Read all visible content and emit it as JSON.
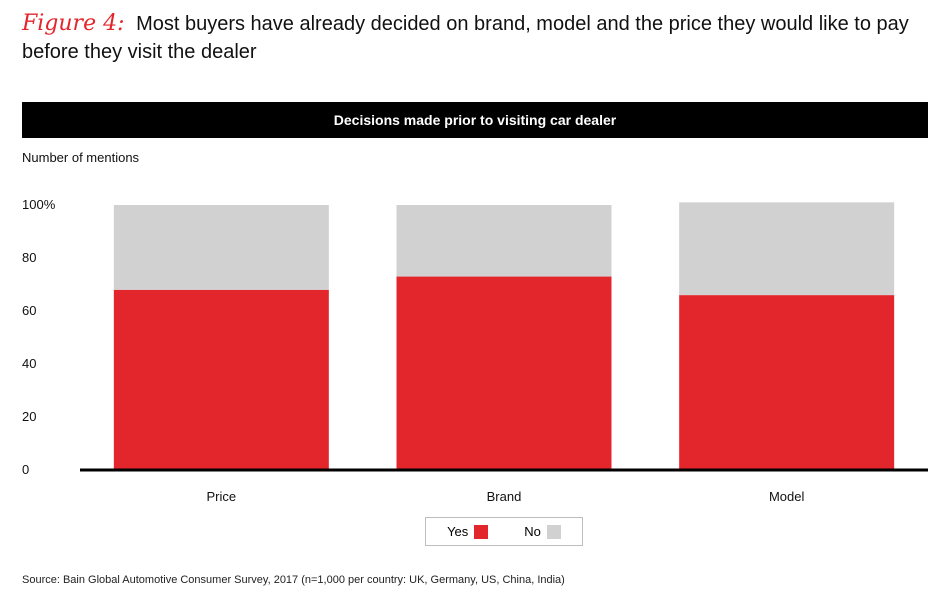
{
  "figure": {
    "label": "Figure 4:",
    "title": "Most buyers have already decided on brand, model and the price they would like to pay before they visit the dealer"
  },
  "banner": "Decisions made prior to visiting car dealer",
  "colors": {
    "yes": "#e3262b",
    "no": "#d1d1d2",
    "axis": "#000000",
    "banner": "#000000"
  },
  "legend": [
    {
      "label": "Yes",
      "color": "#e3262b"
    },
    {
      "label": "No",
      "color": "#d1d1d2"
    }
  ],
  "source": "Source: Bain Global Automotive Consumer Survey, 2017 (n=1,000 per country: UK, Germany, US, China, India)",
  "chart_data": {
    "type": "bar",
    "stacked": true,
    "title": "Decisions made prior to visiting car dealer",
    "ylabel": "Number of mentions",
    "xlabel": "",
    "categories": [
      "Price",
      "Brand",
      "Model"
    ],
    "series": [
      {
        "name": "Yes",
        "values": [
          68,
          73,
          66
        ]
      },
      {
        "name": "No",
        "values": [
          32,
          27,
          35
        ]
      }
    ],
    "ylim": [
      0,
      100
    ],
    "yticks": [
      "0",
      "20",
      "40",
      "60",
      "80",
      "100%"
    ],
    "ytick_values": [
      0,
      20,
      40,
      60,
      80,
      100
    ],
    "grid": false,
    "legend_position": "bottom-center"
  }
}
